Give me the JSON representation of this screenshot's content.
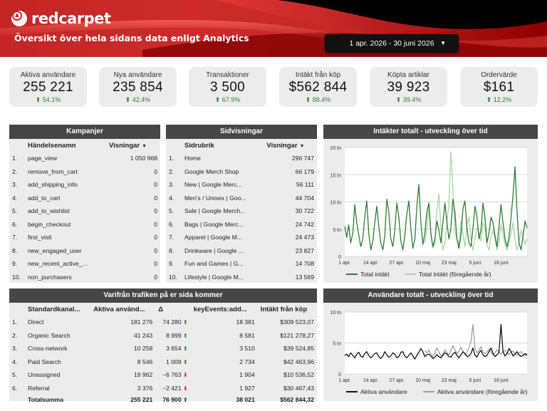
{
  "header": {
    "brand": "redcarpet",
    "subtitle": "Översikt över hela sidans data enligt Analytics",
    "date_range": "1 apr. 2026 - 30 juni 2026"
  },
  "kpis": [
    {
      "label": "Aktiva användare",
      "value": "255 221",
      "delta": "54.1%"
    },
    {
      "label": "Nya användare",
      "value": "235 854",
      "delta": "42.4%"
    },
    {
      "label": "Transaktioner",
      "value": "3 500",
      "delta": "67.9%"
    },
    {
      "label": "Intäkt från köp",
      "value": "$562 844",
      "delta": "88.4%"
    },
    {
      "label": "Köpta artiklar",
      "value": "39 923",
      "delta": "39.4%"
    },
    {
      "label": "Ordervärde",
      "value": "$161",
      "delta": "12.2%"
    }
  ],
  "campaigns": {
    "title": "Kampanjer",
    "col_name": "Händelsenamn",
    "col_value": "Visningar",
    "rows": [
      {
        "idx": "1.",
        "name": "page_view",
        "value": "1 050 968"
      },
      {
        "idx": "2.",
        "name": "remove_from_cart",
        "value": "0"
      },
      {
        "idx": "3.",
        "name": "add_shipping_info",
        "value": "0"
      },
      {
        "idx": "4.",
        "name": "add_to_cart",
        "value": "0"
      },
      {
        "idx": "5.",
        "name": "add_to_wishlist",
        "value": "0"
      },
      {
        "idx": "6.",
        "name": "begin_checkout",
        "value": "0"
      },
      {
        "idx": "7.",
        "name": "first_visit",
        "value": "0"
      },
      {
        "idx": "8.",
        "name": "new_engaged_user",
        "value": "0"
      },
      {
        "idx": "9.",
        "name": "new_recent_active_...",
        "value": "0"
      },
      {
        "idx": "10.",
        "name": "non_purchasers",
        "value": "0"
      }
    ]
  },
  "pageviews": {
    "title": "Sidvisningar",
    "col_name": "Sidrubrik",
    "col_value": "Visningar",
    "rows": [
      {
        "idx": "1.",
        "name": "Home",
        "value": "296 747"
      },
      {
        "idx": "2.",
        "name": "Google Merch Shop",
        "value": "66 179"
      },
      {
        "idx": "3.",
        "name": "New | Google Merc...",
        "value": "56 111"
      },
      {
        "idx": "4.",
        "name": "Men's / Unisex | Goo...",
        "value": "44 704"
      },
      {
        "idx": "5.",
        "name": "Sale | Google Merch...",
        "value": "30 722"
      },
      {
        "idx": "6.",
        "name": "Bags | Google Merc...",
        "value": "24 742"
      },
      {
        "idx": "7.",
        "name": "Apparel | Google M...",
        "value": "24 473"
      },
      {
        "idx": "8.",
        "name": "Drinkware | Google ...",
        "value": "23 827"
      },
      {
        "idx": "9.",
        "name": "Fun and Games | G...",
        "value": "14 708"
      },
      {
        "idx": "10.",
        "name": "Lifestyle | Google M...",
        "value": "13 569"
      }
    ]
  },
  "traffic": {
    "title": "Varifrån trafiken på er sida kommer",
    "col_channel": "Standardkanal...",
    "col_users": "Aktiva använd...",
    "col_delta": "Δ",
    "col_events": "keyEvents:add...",
    "col_revenue": "Intäkt från köp",
    "rows": [
      {
        "idx": "1.",
        "channel": "Direct",
        "users": "181 276",
        "delta": "74 280",
        "dir": "up",
        "events": "18 381",
        "revenue": "$309 523,07"
      },
      {
        "idx": "2.",
        "channel": "Organic Search",
        "users": "41 243",
        "delta": "8 999",
        "dir": "up",
        "events": "8 581",
        "revenue": "$121 278,27"
      },
      {
        "idx": "3.",
        "channel": "Cross-network",
        "users": "10 258",
        "delta": "3 654",
        "dir": "up",
        "events": "3 510",
        "revenue": "$39 524,85"
      },
      {
        "idx": "4.",
        "channel": "Paid Search",
        "users": "8 546",
        "delta": "1 009",
        "dir": "up",
        "events": "2 734",
        "revenue": "$42 463,96"
      },
      {
        "idx": "5.",
        "channel": "Unassigned",
        "users": "19 962",
        "delta": "−6 763",
        "dir": "down",
        "events": "1 904",
        "revenue": "$10 536,52"
      },
      {
        "idx": "6.",
        "channel": "Referral",
        "users": "3 376",
        "delta": "−2 421",
        "dir": "down",
        "events": "1 927",
        "revenue": "$30 467,43"
      }
    ],
    "totals": {
      "label": "Totalsumma",
      "users": "255 221",
      "delta": "76 900",
      "events": "38 021",
      "revenue": "$562 844,32"
    }
  },
  "chart_data": [
    {
      "type": "line",
      "title": "Intäkter totalt - utveckling över tid",
      "x_tick_labels": [
        "1 apr.",
        "14 apr.",
        "27 apr.",
        "10 maj",
        "23 maj",
        "5 juni",
        "18 juni"
      ],
      "y_tick_labels": [
        "0",
        "5 tn",
        "10 tn",
        "15 tn",
        "20 tn"
      ],
      "ylim": [
        0,
        20
      ],
      "grid": true,
      "legend_position": "bottom",
      "series": [
        {
          "name": "Total intäkt",
          "color": "#2e7d32",
          "values": [
            5.5,
            3.5,
            5.8,
            2.5,
            4.2,
            9.5,
            6.2,
            4.0,
            1.8,
            3.2,
            7.2,
            10.2,
            4.2,
            1.2,
            2.8,
            6.2,
            9.2,
            5.5,
            2.5,
            1.2,
            3.8,
            10.5,
            8.2,
            3.2,
            1.8,
            4.8,
            9.8,
            7.2,
            2.8,
            1.2,
            3.8,
            7.8,
            10.2,
            5.2,
            1.5,
            3.2,
            9.2,
            13.2,
            6.2,
            2.2,
            4.2,
            8.2,
            9.8,
            4.2,
            1.8,
            3.2,
            6.5,
            4.8,
            2.5,
            6.2,
            9.8,
            6.2,
            3.2,
            5.2,
            10.5,
            8.2,
            3.2,
            1.5,
            3.8,
            8.8,
            10.2,
            5.2,
            2.5,
            1.8,
            5.2,
            9.2,
            7.2,
            3.2,
            4.8,
            9.8,
            7.2,
            2.5,
            4.2,
            7.2,
            6.2,
            3.8,
            1.8,
            5.5,
            9.5,
            6.2,
            3.2,
            1.8,
            3.5,
            7.2,
            11.2,
            16.5,
            8.2,
            2.5,
            1.2,
            3.8,
            6.5,
            5.2
          ]
        },
        {
          "name": "Total intäkt (föregående år)",
          "color": "#a5d6a7",
          "values": [
            null,
            null,
            null,
            null,
            null,
            null,
            null,
            null,
            null,
            null,
            null,
            null,
            null,
            null,
            null,
            null,
            null,
            null,
            null,
            null,
            null,
            null,
            null,
            null,
            null,
            null,
            null,
            null,
            null,
            null,
            null,
            null,
            null,
            null,
            null,
            null,
            null,
            null,
            null,
            null,
            2.5,
            5.2,
            9.2,
            3.8,
            1.5,
            2.5,
            8.5,
            11.5,
            5.2,
            1.2,
            2.5,
            6.2,
            9.8,
            19.2,
            12.2,
            4.8,
            3.2,
            2.2,
            6.5,
            4.2,
            1.8,
            5.8,
            7.2,
            3.2,
            1.2,
            3.2,
            5.2,
            4.5,
            2.8,
            6.2,
            5.2,
            2.2,
            1.2,
            3.5,
            4.8,
            3.2,
            1.2,
            2.5,
            5.8,
            4.2,
            2.2,
            1.2,
            2.5,
            4.2,
            6.2,
            3.2,
            1.2,
            2.5,
            4.8,
            3.5,
            2.2,
            3.2
          ]
        }
      ]
    },
    {
      "type": "line",
      "title": "Användare totalt - utveckling över tid",
      "x_tick_labels": [
        "1 apr.",
        "14 apr.",
        "27 apr.",
        "10 maj",
        "23 maj",
        "5 juni",
        "18 juni"
      ],
      "y_tick_labels": [
        "0",
        "5 tn",
        "10 tn"
      ],
      "ylim": [
        0,
        10
      ],
      "grid": true,
      "legend_position": "bottom",
      "series": [
        {
          "name": "Aktiva användare",
          "color": "#111111",
          "values": [
            3.0,
            3.2,
            2.8,
            3.4,
            3.0,
            2.6,
            3.2,
            3.5,
            2.9,
            2.7,
            3.3,
            3.6,
            3.0,
            2.6,
            2.9,
            3.3,
            3.4,
            2.8,
            2.5,
            2.9,
            3.6,
            3.1,
            2.7,
            2.9,
            3.4,
            3.2,
            2.6,
            2.8,
            3.5,
            3.6,
            2.9,
            2.6,
            3.0,
            3.4,
            2.9,
            2.4,
            3.0,
            3.5,
            4.1,
            3.6,
            2.8,
            3.1,
            3.2,
            2.9,
            2.5,
            2.7,
            3.1,
            2.8,
            2.6,
            3.0,
            3.4,
            3.2,
            2.8,
            2.7,
            3.2,
            3.5,
            3.0,
            2.6,
            3.1,
            3.6,
            3.3,
            2.8,
            2.9,
            3.3,
            4.2,
            3.0,
            2.7,
            3.4,
            3.8,
            3.1,
            2.8,
            3.0,
            3.6,
            4.2,
            3.3,
            2.8,
            3.1,
            3.5,
            8.0,
            3.6,
            2.9,
            3.3,
            4.1,
            3.6,
            2.9,
            3.2,
            3.6,
            3.1,
            2.8,
            3.0,
            3.3,
            3.0
          ]
        },
        {
          "name": "Aktiva användare (föregående år)",
          "color": "#9e9e9e",
          "values": [
            null,
            null,
            null,
            null,
            null,
            null,
            null,
            null,
            null,
            null,
            null,
            null,
            null,
            null,
            null,
            null,
            null,
            null,
            null,
            null,
            null,
            null,
            null,
            null,
            null,
            null,
            null,
            null,
            null,
            null,
            null,
            null,
            null,
            null,
            null,
            null,
            null,
            null,
            null,
            null,
            3.8,
            3.4,
            3.9,
            3.2,
            2.8,
            3.4,
            4.2,
            3.6,
            2.9,
            3.2,
            3.9,
            3.4,
            3.1,
            3.8,
            4.6,
            3.9,
            3.3,
            3.7,
            4.3,
            3.6,
            3.1,
            3.5,
            4.2,
            5.2,
            8.0,
            4.1,
            3.4,
            3.8,
            4.4,
            3.6,
            3.3,
            3.6,
            4.0,
            3.5,
            3.1,
            3.4,
            3.9,
            3.5,
            3.2,
            3.6,
            3.8,
            3.4,
            3.1,
            3.5,
            3.7,
            3.3,
            3.0,
            3.4,
            3.6,
            3.2,
            3.0,
            3.3
          ]
        }
      ]
    }
  ]
}
